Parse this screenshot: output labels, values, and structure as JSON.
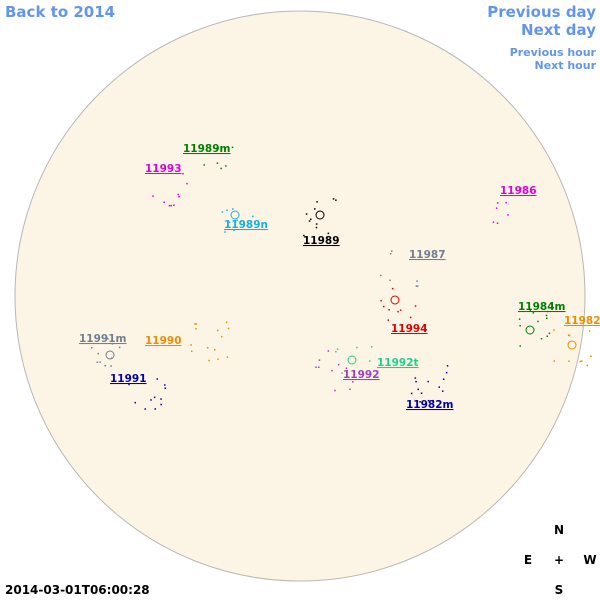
{
  "nav": {
    "back": "Back to 2014",
    "previous_day": "Previous day",
    "next_day": "Next day",
    "previous_hour": "Previous hour",
    "next_hour": "Next hour"
  },
  "regions": [
    {
      "label": "11989m",
      "color": "#008000"
    },
    {
      "label": "11993",
      "color": "#e000e0"
    },
    {
      "label": "11986",
      "color": "#e000e0"
    },
    {
      "label": "11989n",
      "color": "#18b0dc"
    },
    {
      "label": "11989",
      "color": "#000000"
    },
    {
      "label": "11987",
      "color": "#708090"
    },
    {
      "label": "11984m",
      "color": "#008000"
    },
    {
      "label": "11982",
      "color": "#f08c00"
    },
    {
      "label": "11994",
      "color": "#e00000"
    },
    {
      "label": "11991m",
      "color": "#708090"
    },
    {
      "label": "11990",
      "color": "#f08c00"
    },
    {
      "label": "11992t",
      "color": "#20d090"
    },
    {
      "label": "11992",
      "color": "#a040c0"
    },
    {
      "label": "11991",
      "color": "#0000b0"
    },
    {
      "label": "11982m",
      "color": "#0000b0"
    }
  ],
  "compass": {
    "north": "N",
    "east": "E",
    "center": "+",
    "west": "W",
    "south": "S"
  },
  "timestamp": "2014-03-01T06:00:28"
}
